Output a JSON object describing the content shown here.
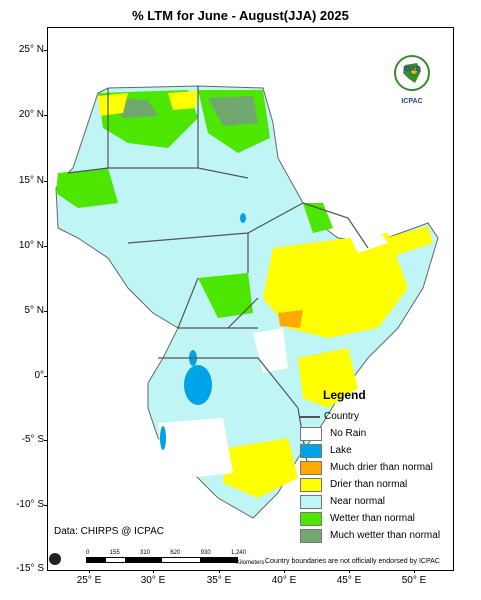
{
  "title": "% LTM  for  June - August(JJA) 2025",
  "lat_labels": [
    "25° N",
    "20° N",
    "15° N",
    "10° N",
    "5° N",
    "0°",
    "-5° S",
    "-10° S",
    "-15° S"
  ],
  "lon_labels": [
    "25° E",
    "30° E",
    "35° E",
    "40° E",
    "45° E",
    "50° E"
  ],
  "legend": {
    "title": "Legend",
    "country_label": "Country",
    "items": [
      {
        "label": "No Rain",
        "color": "#ffffff"
      },
      {
        "label": "Lake",
        "color": "#00a2e8"
      },
      {
        "label": "Much drier than normal",
        "color": "#ffaa00"
      },
      {
        "label": "Drier than normal",
        "color": "#ffff00"
      },
      {
        "label": "Near normal",
        "color": "#bff5f5"
      },
      {
        "label": "Wetter than normal",
        "color": "#4ce600"
      },
      {
        "label": "Much wetter than normal",
        "color": "#70a870"
      }
    ]
  },
  "logo": {
    "top": "IGAD",
    "bottom": "ICPAC"
  },
  "data_source": "Data: CHIRPS @ ICPAC",
  "scale": {
    "ticks": [
      "0",
      "155",
      "310",
      "620",
      "930",
      "1,240"
    ],
    "unit": "Kilometers"
  },
  "disclaimer": "Country boundaries are not officially endorsed by ICPAC"
}
